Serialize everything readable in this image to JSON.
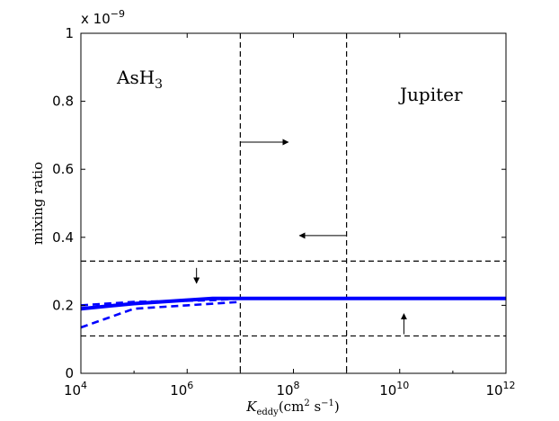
{
  "chart_data": {
    "type": "line",
    "title": "",
    "xlabel": {
      "base": "K",
      "subscript": "eddy",
      "units": "(cm",
      "units_sup1": "2",
      "units_mid": " s",
      "units_sup2": "−1",
      "units_end": ")"
    },
    "ylabel": "mixing ratio",
    "y_multiplier": {
      "prefix": "x 10",
      "exponent": "−9"
    },
    "xscale": "log",
    "xlim": [
      10000,
      1000000000000
    ],
    "ylim": [
      0,
      1
    ],
    "x_ticks": [
      {
        "value": 10000,
        "base": "10",
        "exp": "4"
      },
      {
        "value": 1000000,
        "base": "10",
        "exp": "6"
      },
      {
        "value": 100000000,
        "base": "10",
        "exp": "8"
      },
      {
        "value": 10000000000,
        "base": "10",
        "exp": "10"
      },
      {
        "value": 1000000000000,
        "base": "10",
        "exp": "12"
      }
    ],
    "y_ticks": [
      {
        "value": 0,
        "label": "0"
      },
      {
        "value": 0.2,
        "label": "0.2"
      },
      {
        "value": 0.4,
        "label": "0.4"
      },
      {
        "value": 0.6,
        "label": "0.6"
      },
      {
        "value": 0.8,
        "label": "0.8"
      },
      {
        "value": 1,
        "label": "1"
      }
    ],
    "series": [
      {
        "style": "solid",
        "color": "#0000ff",
        "x": [
          10000,
          100000,
          3000000,
          10000000,
          100000000,
          1000000000000
        ],
        "y": [
          0.19,
          0.205,
          0.22,
          0.22,
          0.22,
          0.22
        ]
      },
      {
        "style": "dashed",
        "color": "#0000ff",
        "x": [
          10000,
          100000,
          3000000,
          10000000
        ],
        "y": [
          0.2,
          0.21,
          0.215,
          0.22
        ]
      },
      {
        "style": "dashed",
        "color": "#0000ff",
        "x": [
          10000,
          100000,
          1000000,
          10000000
        ],
        "y": [
          0.135,
          0.19,
          0.2,
          0.21
        ]
      }
    ],
    "reference_lines": {
      "vertical_x": [
        10000000,
        1000000000
      ],
      "horizontal_y": [
        0.33,
        0.11
      ],
      "color": "#000000"
    },
    "arrows": [
      {
        "x1": 10000000,
        "y1": 0.68,
        "x2": 80000000,
        "y2": 0.68
      },
      {
        "x1": 1000000000,
        "y1": 0.405,
        "x2": 130000000,
        "y2": 0.405
      },
      {
        "x1": 1500000,
        "y1": 0.31,
        "x2": 1500000,
        "y2": 0.265
      },
      {
        "x1": 12000000000,
        "y1": 0.115,
        "x2": 12000000000,
        "y2": 0.175
      }
    ],
    "annotations": {
      "species": {
        "base": "AsH",
        "sub": "3"
      },
      "planet": "Jupiter"
    },
    "grid": false
  }
}
